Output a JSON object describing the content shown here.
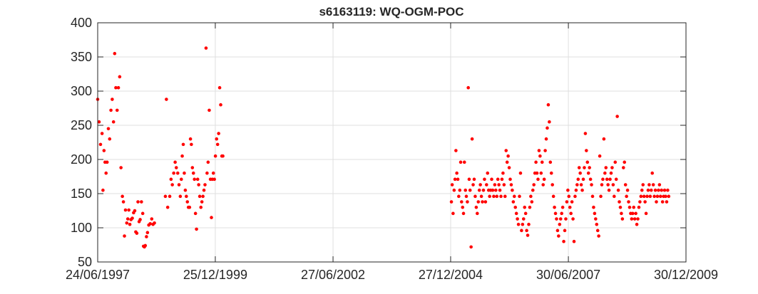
{
  "chart_data": {
    "type": "scatter",
    "title": "s6163119: WQ-OGM-POC",
    "xlabel": "",
    "ylabel": "",
    "grid": true,
    "legend": "none",
    "colors": {
      "marker": "#ff0000",
      "axis": "#262626",
      "grid": "#dfdfdf",
      "background": "#ffffff"
    },
    "xlim": [
      "1997-06-24",
      "2009-12-30"
    ],
    "ylim": [
      50,
      400
    ],
    "x_ticks": [
      {
        "date": "1997-06-24",
        "label": "24/06/1997"
      },
      {
        "date": "1999-12-25",
        "label": "25/12/1999"
      },
      {
        "date": "2002-06-27",
        "label": "27/06/2002"
      },
      {
        "date": "2004-12-27",
        "label": "27/12/2004"
      },
      {
        "date": "2007-06-30",
        "label": "30/06/2007"
      },
      {
        "date": "2009-12-30",
        "label": "30/12/2009"
      }
    ],
    "y_ticks": [
      50,
      100,
      150,
      200,
      250,
      300,
      350,
      400
    ],
    "points": [
      [
        "1997-06-24",
        288
      ],
      [
        "1997-07-05",
        255
      ],
      [
        "1997-07-16",
        222
      ],
      [
        "1997-07-28",
        238
      ],
      [
        "1997-08-04",
        155
      ],
      [
        "1997-08-12",
        213
      ],
      [
        "1997-08-20",
        196
      ],
      [
        "1997-08-28",
        180
      ],
      [
        "1997-09-05",
        196
      ],
      [
        "1997-09-15",
        245
      ],
      [
        "1997-09-25",
        230
      ],
      [
        "1997-10-05",
        272
      ],
      [
        "1997-10-15",
        288
      ],
      [
        "1997-10-25",
        255
      ],
      [
        "1997-11-03",
        355
      ],
      [
        "1997-11-12",
        305
      ],
      [
        "1997-11-22",
        272
      ],
      [
        "1997-12-02",
        305
      ],
      [
        "1997-12-12",
        321
      ],
      [
        "1997-12-22",
        188
      ],
      [
        "1998-01-02",
        146
      ],
      [
        "1998-01-10",
        138
      ],
      [
        "1998-01-18",
        88
      ],
      [
        "1998-01-26",
        126
      ],
      [
        "1998-02-05",
        107
      ],
      [
        "1998-02-13",
        113
      ],
      [
        "1998-02-21",
        126
      ],
      [
        "1998-03-01",
        105
      ],
      [
        "1998-03-10",
        112
      ],
      [
        "1998-03-20",
        114
      ],
      [
        "1998-03-30",
        122
      ],
      [
        "1998-04-08",
        125
      ],
      [
        "1998-04-16",
        94
      ],
      [
        "1998-04-24",
        92
      ],
      [
        "1998-05-03",
        138
      ],
      [
        "1998-05-12",
        109
      ],
      [
        "1998-05-20",
        112
      ],
      [
        "1998-05-30",
        138
      ],
      [
        "1998-06-09",
        121
      ],
      [
        "1998-06-15",
        73
      ],
      [
        "1998-06-22",
        72
      ],
      [
        "1998-06-29",
        74
      ],
      [
        "1998-07-08",
        87
      ],
      [
        "1998-07-16",
        93
      ],
      [
        "1998-07-26",
        104
      ],
      [
        "1998-08-06",
        106
      ],
      [
        "1998-08-18",
        113
      ],
      [
        "1998-08-28",
        105
      ],
      [
        "1998-09-08",
        107
      ],
      [
        "1998-12-02",
        146
      ],
      [
        "1998-12-10",
        288
      ],
      [
        "1998-12-20",
        130
      ],
      [
        "1999-01-05",
        146
      ],
      [
        "1999-01-15",
        171
      ],
      [
        "1999-01-25",
        163
      ],
      [
        "1999-02-05",
        180
      ],
      [
        "1999-02-16",
        196
      ],
      [
        "1999-02-25",
        188
      ],
      [
        "1999-03-08",
        180
      ],
      [
        "1999-03-18",
        163
      ],
      [
        "1999-03-28",
        146
      ],
      [
        "1999-04-05",
        171
      ],
      [
        "1999-04-12",
        205
      ],
      [
        "1999-04-20",
        222
      ],
      [
        "1999-04-28",
        180
      ],
      [
        "1999-05-06",
        155
      ],
      [
        "1999-05-14",
        146
      ],
      [
        "1999-05-22",
        138
      ],
      [
        "1999-05-30",
        130
      ],
      [
        "1999-06-08",
        130
      ],
      [
        "1999-06-15",
        230
      ],
      [
        "1999-06-22",
        222
      ],
      [
        "1999-06-30",
        188
      ],
      [
        "1999-07-08",
        180
      ],
      [
        "1999-07-16",
        171
      ],
      [
        "1999-07-24",
        121
      ],
      [
        "1999-08-01",
        98
      ],
      [
        "1999-08-10",
        171
      ],
      [
        "1999-08-18",
        163
      ],
      [
        "1999-08-26",
        146
      ],
      [
        "1999-09-04",
        130
      ],
      [
        "1999-09-12",
        138
      ],
      [
        "1999-09-20",
        146
      ],
      [
        "1999-09-28",
        155
      ],
      [
        "1999-10-06",
        163
      ],
      [
        "1999-10-14",
        363
      ],
      [
        "1999-10-22",
        180
      ],
      [
        "1999-10-30",
        196
      ],
      [
        "1999-11-08",
        272
      ],
      [
        "1999-11-17",
        171
      ],
      [
        "1999-11-25",
        115
      ],
      [
        "1999-12-02",
        171
      ],
      [
        "1999-12-10",
        180
      ],
      [
        "1999-12-18",
        171
      ],
      [
        "1999-12-26",
        205
      ],
      [
        "2000-01-04",
        230
      ],
      [
        "2000-01-12",
        222
      ],
      [
        "2000-01-20",
        238
      ],
      [
        "2000-01-28",
        305
      ],
      [
        "2000-02-05",
        280
      ],
      [
        "2000-02-14",
        205
      ],
      [
        "2000-02-22",
        205
      ],
      [
        "2005-01-02",
        138
      ],
      [
        "2005-01-08",
        163
      ],
      [
        "2005-01-15",
        121
      ],
      [
        "2005-01-23",
        155
      ],
      [
        "2005-01-30",
        171
      ],
      [
        "2005-02-06",
        213
      ],
      [
        "2005-02-13",
        180
      ],
      [
        "2005-02-21",
        171
      ],
      [
        "2005-02-28",
        146
      ],
      [
        "2005-03-08",
        155
      ],
      [
        "2005-03-15",
        196
      ],
      [
        "2005-03-22",
        138
      ],
      [
        "2005-03-30",
        130
      ],
      [
        "2005-04-06",
        121
      ],
      [
        "2005-04-13",
        196
      ],
      [
        "2005-04-21",
        155
      ],
      [
        "2005-04-28",
        146
      ],
      [
        "2005-05-06",
        138
      ],
      [
        "2005-05-13",
        305
      ],
      [
        "2005-05-20",
        171
      ],
      [
        "2005-05-27",
        155
      ],
      [
        "2005-06-04",
        72
      ],
      [
        "2005-06-12",
        230
      ],
      [
        "2005-06-20",
        163
      ],
      [
        "2005-06-28",
        171
      ],
      [
        "2005-07-06",
        146
      ],
      [
        "2005-07-14",
        130
      ],
      [
        "2005-07-22",
        121
      ],
      [
        "2005-07-30",
        138
      ],
      [
        "2005-08-07",
        155
      ],
      [
        "2005-08-15",
        163
      ],
      [
        "2005-08-23",
        146
      ],
      [
        "2005-08-31",
        138
      ],
      [
        "2005-09-08",
        155
      ],
      [
        "2005-09-16",
        171
      ],
      [
        "2005-09-24",
        138
      ],
      [
        "2005-10-02",
        163
      ],
      [
        "2005-10-10",
        180
      ],
      [
        "2005-10-18",
        155
      ],
      [
        "2005-10-26",
        146
      ],
      [
        "2005-11-03",
        155
      ],
      [
        "2005-11-11",
        171
      ],
      [
        "2005-11-19",
        155
      ],
      [
        "2005-11-27",
        146
      ],
      [
        "2005-12-05",
        163
      ],
      [
        "2005-12-13",
        155
      ],
      [
        "2005-12-21",
        146
      ],
      [
        "2005-12-29",
        171
      ],
      [
        "2006-01-06",
        163
      ],
      [
        "2006-01-14",
        155
      ],
      [
        "2006-01-22",
        146
      ],
      [
        "2006-01-30",
        171
      ],
      [
        "2006-02-07",
        180
      ],
      [
        "2006-02-15",
        163
      ],
      [
        "2006-02-23",
        146
      ],
      [
        "2006-03-03",
        213
      ],
      [
        "2006-03-11",
        196
      ],
      [
        "2006-03-19",
        205
      ],
      [
        "2006-03-27",
        188
      ],
      [
        "2006-04-04",
        171
      ],
      [
        "2006-04-12",
        163
      ],
      [
        "2006-04-20",
        155
      ],
      [
        "2006-04-28",
        138
      ],
      [
        "2006-05-06",
        146
      ],
      [
        "2006-05-14",
        130
      ],
      [
        "2006-05-22",
        121
      ],
      [
        "2006-05-30",
        113
      ],
      [
        "2006-06-07",
        105
      ],
      [
        "2006-06-15",
        146
      ],
      [
        "2006-06-23",
        180
      ],
      [
        "2006-07-01",
        96
      ],
      [
        "2006-07-09",
        105
      ],
      [
        "2006-07-17",
        113
      ],
      [
        "2006-07-25",
        130
      ],
      [
        "2006-08-02",
        121
      ],
      [
        "2006-08-10",
        96
      ],
      [
        "2006-08-18",
        89
      ],
      [
        "2006-08-26",
        105
      ],
      [
        "2006-09-03",
        130
      ],
      [
        "2006-09-11",
        146
      ],
      [
        "2006-09-19",
        138
      ],
      [
        "2006-09-27",
        155
      ],
      [
        "2006-10-05",
        163
      ],
      [
        "2006-10-13",
        180
      ],
      [
        "2006-10-21",
        196
      ],
      [
        "2006-10-29",
        180
      ],
      [
        "2006-11-06",
        171
      ],
      [
        "2006-11-14",
        213
      ],
      [
        "2006-11-22",
        205
      ],
      [
        "2006-11-30",
        180
      ],
      [
        "2006-12-08",
        196
      ],
      [
        "2006-12-16",
        163
      ],
      [
        "2006-12-24",
        171
      ],
      [
        "2007-01-01",
        213
      ],
      [
        "2007-01-09",
        230
      ],
      [
        "2007-01-17",
        246
      ],
      [
        "2007-01-25",
        280
      ],
      [
        "2007-02-02",
        255
      ],
      [
        "2007-02-10",
        196
      ],
      [
        "2007-02-18",
        180
      ],
      [
        "2007-02-26",
        163
      ],
      [
        "2007-03-06",
        146
      ],
      [
        "2007-03-14",
        130
      ],
      [
        "2007-03-22",
        121
      ],
      [
        "2007-03-30",
        113
      ],
      [
        "2007-04-07",
        96
      ],
      [
        "2007-04-15",
        88
      ],
      [
        "2007-04-23",
        105
      ],
      [
        "2007-05-01",
        113
      ],
      [
        "2007-05-09",
        121
      ],
      [
        "2007-05-17",
        130
      ],
      [
        "2007-05-25",
        80
      ],
      [
        "2007-06-02",
        96
      ],
      [
        "2007-06-10",
        113
      ],
      [
        "2007-06-18",
        138
      ],
      [
        "2007-06-26",
        155
      ],
      [
        "2007-07-04",
        146
      ],
      [
        "2007-07-12",
        130
      ],
      [
        "2007-07-20",
        121
      ],
      [
        "2007-07-28",
        138
      ],
      [
        "2007-08-05",
        113
      ],
      [
        "2007-08-13",
        80
      ],
      [
        "2007-08-21",
        146
      ],
      [
        "2007-08-29",
        155
      ],
      [
        "2007-09-06",
        163
      ],
      [
        "2007-09-14",
        171
      ],
      [
        "2007-09-22",
        188
      ],
      [
        "2007-09-30",
        180
      ],
      [
        "2007-10-08",
        163
      ],
      [
        "2007-10-16",
        155
      ],
      [
        "2007-10-24",
        171
      ],
      [
        "2007-11-01",
        188
      ],
      [
        "2007-11-09",
        238
      ],
      [
        "2007-11-17",
        213
      ],
      [
        "2007-11-25",
        196
      ],
      [
        "2007-12-03",
        180
      ],
      [
        "2007-12-11",
        188
      ],
      [
        "2007-12-19",
        171
      ],
      [
        "2007-12-27",
        163
      ],
      [
        "2008-01-04",
        146
      ],
      [
        "2008-01-12",
        130
      ],
      [
        "2008-01-20",
        121
      ],
      [
        "2008-01-28",
        113
      ],
      [
        "2008-02-05",
        105
      ],
      [
        "2008-02-13",
        96
      ],
      [
        "2008-02-21",
        88
      ],
      [
        "2008-02-29",
        205
      ],
      [
        "2008-03-08",
        146
      ],
      [
        "2008-03-16",
        163
      ],
      [
        "2008-03-24",
        171
      ],
      [
        "2008-04-01",
        230
      ],
      [
        "2008-04-09",
        180
      ],
      [
        "2008-04-17",
        188
      ],
      [
        "2008-04-25",
        171
      ],
      [
        "2008-05-03",
        163
      ],
      [
        "2008-05-11",
        155
      ],
      [
        "2008-05-19",
        171
      ],
      [
        "2008-05-27",
        180
      ],
      [
        "2008-06-04",
        188
      ],
      [
        "2008-06-12",
        163
      ],
      [
        "2008-06-20",
        146
      ],
      [
        "2008-06-28",
        196
      ],
      [
        "2008-07-06",
        171
      ],
      [
        "2008-07-14",
        263
      ],
      [
        "2008-07-22",
        155
      ],
      [
        "2008-07-30",
        138
      ],
      [
        "2008-08-07",
        130
      ],
      [
        "2008-08-15",
        121
      ],
      [
        "2008-08-23",
        113
      ],
      [
        "2008-08-31",
        188
      ],
      [
        "2008-09-08",
        196
      ],
      [
        "2008-09-16",
        163
      ],
      [
        "2008-09-24",
        146
      ],
      [
        "2008-10-02",
        155
      ],
      [
        "2008-10-10",
        138
      ],
      [
        "2008-10-18",
        130
      ],
      [
        "2008-10-26",
        121
      ],
      [
        "2008-11-03",
        113
      ],
      [
        "2008-11-11",
        121
      ],
      [
        "2008-11-19",
        130
      ],
      [
        "2008-11-27",
        113
      ],
      [
        "2008-12-05",
        121
      ],
      [
        "2008-12-13",
        105
      ],
      [
        "2008-12-21",
        113
      ],
      [
        "2008-12-29",
        130
      ],
      [
        "2009-01-06",
        138
      ],
      [
        "2009-01-14",
        146
      ],
      [
        "2009-01-22",
        155
      ],
      [
        "2009-01-30",
        163
      ],
      [
        "2009-02-07",
        146
      ],
      [
        "2009-02-15",
        138
      ],
      [
        "2009-02-23",
        121
      ],
      [
        "2009-03-03",
        146
      ],
      [
        "2009-03-11",
        155
      ],
      [
        "2009-03-19",
        163
      ],
      [
        "2009-03-27",
        146
      ],
      [
        "2009-04-04",
        155
      ],
      [
        "2009-04-12",
        180
      ],
      [
        "2009-04-20",
        163
      ],
      [
        "2009-04-28",
        146
      ],
      [
        "2009-05-06",
        155
      ],
      [
        "2009-05-14",
        138
      ],
      [
        "2009-05-22",
        146
      ],
      [
        "2009-05-30",
        155
      ],
      [
        "2009-06-07",
        163
      ],
      [
        "2009-06-15",
        146
      ],
      [
        "2009-06-23",
        155
      ],
      [
        "2009-07-01",
        138
      ],
      [
        "2009-07-09",
        146
      ],
      [
        "2009-07-17",
        155
      ],
      [
        "2009-07-25",
        146
      ],
      [
        "2009-08-02",
        138
      ],
      [
        "2009-08-10",
        155
      ],
      [
        "2009-08-18",
        146
      ]
    ]
  }
}
